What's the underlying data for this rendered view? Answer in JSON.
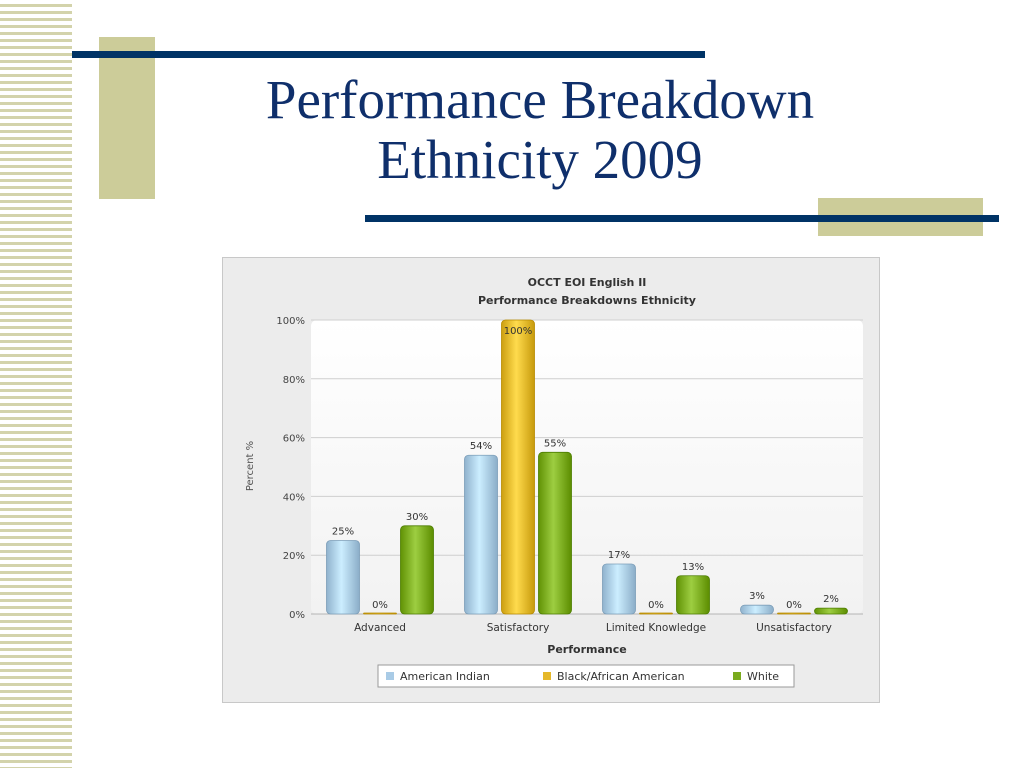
{
  "slide": {
    "title_line1": "Performance Breakdown",
    "title_line2": "Ethnicity 2009"
  },
  "colors": {
    "title": "#0f2f6b",
    "rule": "#003366",
    "accent_block": "#cccc99",
    "american_indian": "#a9cbe6",
    "black_african_american": "#e5b82a",
    "white": "#7aab1e"
  },
  "chart_data": {
    "type": "bar",
    "title": "OCCT EOI English II",
    "subtitle": "Performance Breakdowns Ethnicity",
    "xlabel": "Performance",
    "ylabel": "Percent %",
    "ylim": [
      0,
      100
    ],
    "yticks": [
      "0%",
      "20%",
      "40%",
      "60%",
      "80%",
      "100%"
    ],
    "grid": true,
    "legend_position": "bottom",
    "categories": [
      "Advanced",
      "Satisfactory",
      "Limited Knowledge",
      "Unsatisfactory"
    ],
    "series": [
      {
        "name": "American Indian",
        "color": "#a9cbe6",
        "values": [
          25,
          54,
          17,
          3
        ],
        "labels": [
          "25%",
          "54%",
          "17%",
          "3%"
        ]
      },
      {
        "name": "Black/African American",
        "color": "#e5b82a",
        "values": [
          0,
          100,
          0,
          0
        ],
        "labels": [
          "0%",
          "100%",
          "0%",
          "0%"
        ]
      },
      {
        "name": "White",
        "color": "#7aab1e",
        "values": [
          30,
          55,
          13,
          2
        ],
        "labels": [
          "30%",
          "55%",
          "13%",
          "2%"
        ]
      }
    ]
  }
}
